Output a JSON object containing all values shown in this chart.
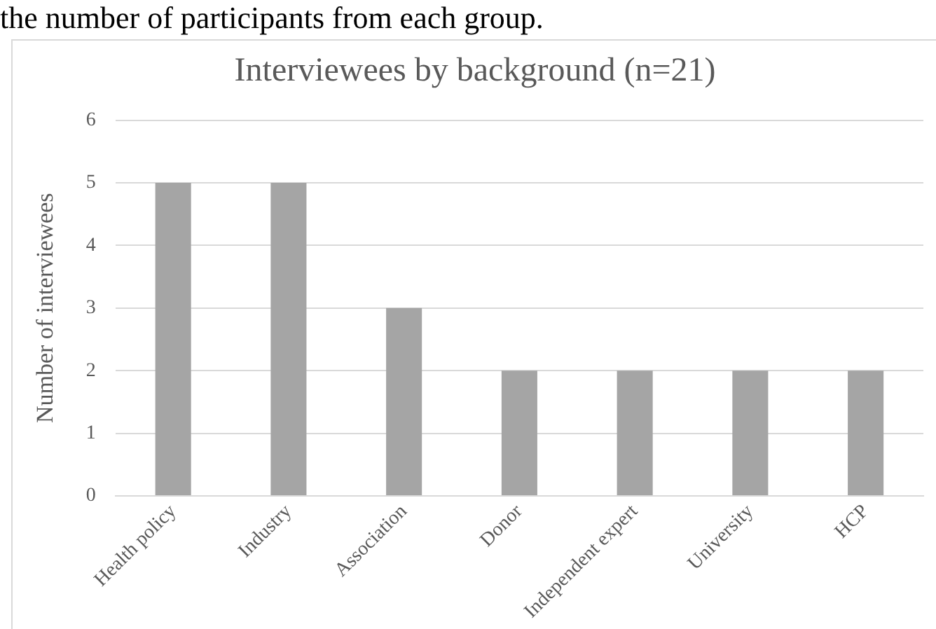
{
  "chart_data": {
    "type": "bar",
    "title": "Interviewees by background (n=21)",
    "ylabel": "Number of interviewees",
    "categories": [
      "Health policy",
      "Industry",
      "Association",
      "Donor",
      "Independent expert",
      "University",
      "HCP"
    ],
    "values": [
      5,
      5,
      3,
      2,
      2,
      2,
      2
    ],
    "color": "#a5a5a5",
    "ylim": [
      0,
      6
    ],
    "yticks": [
      0,
      1,
      2,
      3,
      4,
      5,
      6
    ],
    "grid": "y",
    "annotations": [
      "the number of participants from each group."
    ]
  }
}
